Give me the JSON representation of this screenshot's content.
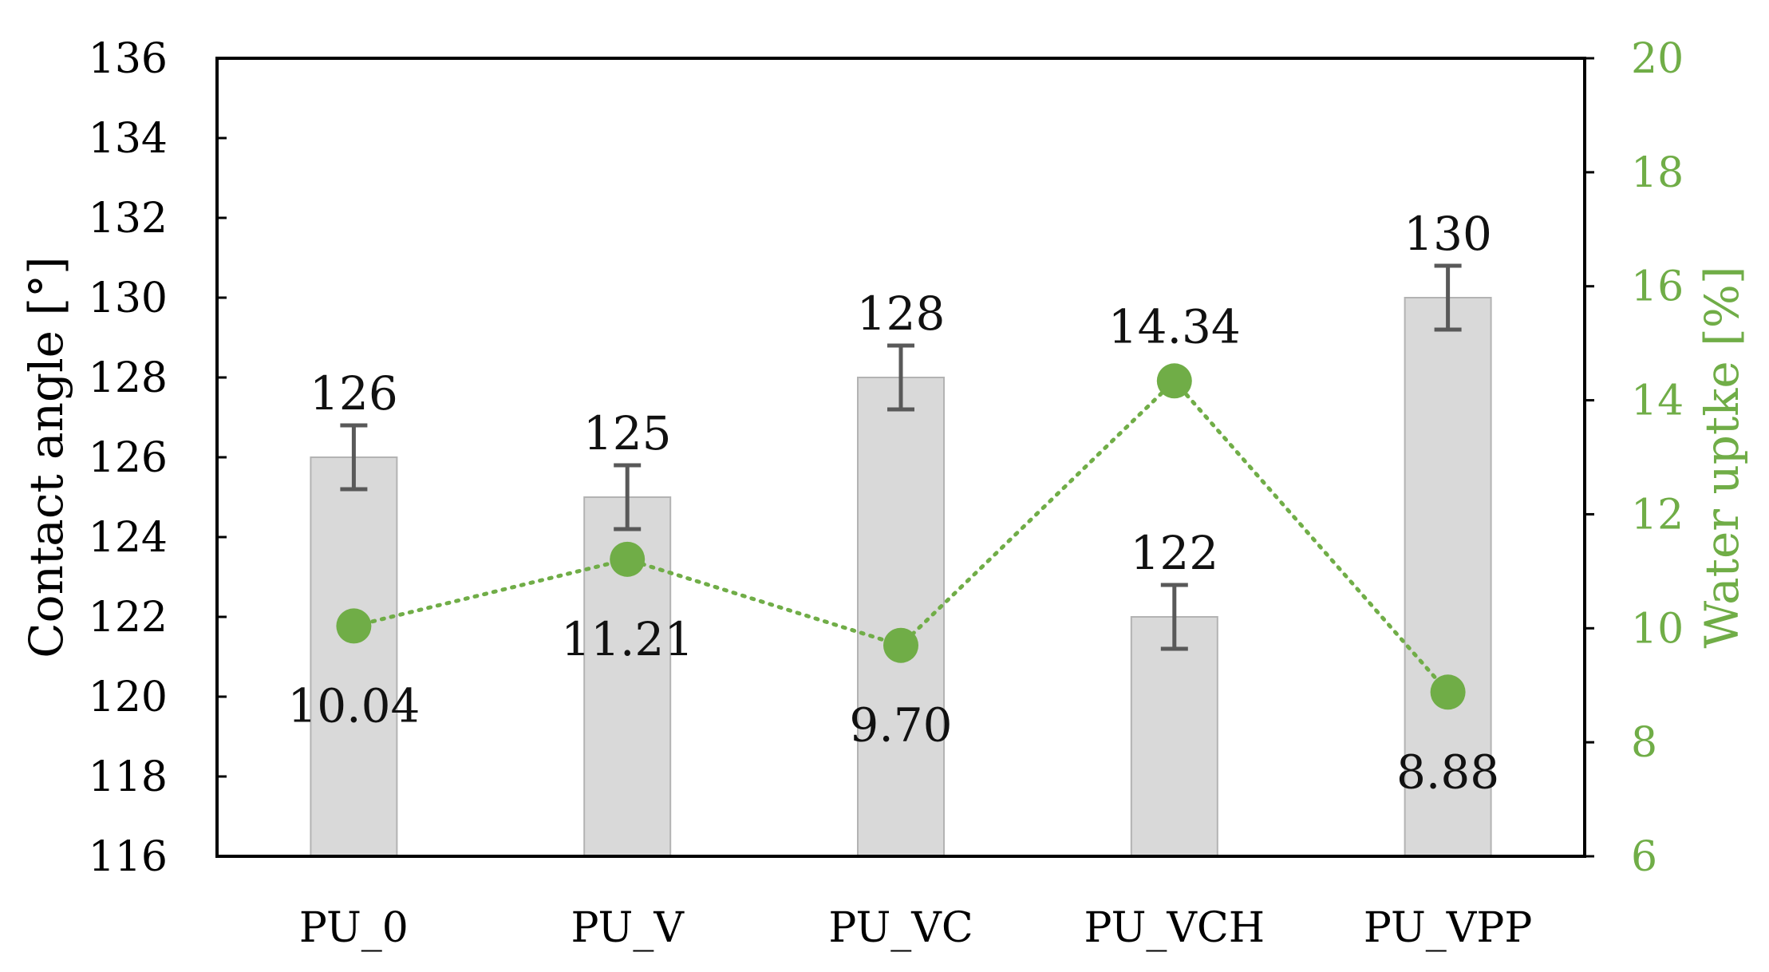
{
  "chart_data": {
    "type": "bar",
    "categories": [
      "PU_0",
      "PU_V",
      "PU_VC",
      "PU_VCH",
      "PU_VPP"
    ],
    "series": [
      {
        "type": "bar",
        "axis": "left",
        "values": [
          126,
          125,
          128,
          122,
          130
        ],
        "error": [
          0.8,
          0.8,
          0.8,
          0.8,
          0.8
        ],
        "labels": [
          "126",
          "125",
          "128",
          "122",
          "130"
        ],
        "color": "#d9d9d9",
        "edge_color": "#b3b3b3",
        "error_color": "#595959"
      },
      {
        "type": "line",
        "axis": "right",
        "values": [
          10.04,
          11.21,
          9.7,
          14.34,
          8.88
        ],
        "labels": [
          "10.04",
          "11.21",
          "9.70",
          "14.34",
          "8.88"
        ],
        "color": "#70ad47",
        "line_style": "dotted"
      }
    ],
    "ylabel": "Contact angle [°]",
    "y2label": "Water uptke [%]",
    "ylim": [
      116,
      136
    ],
    "y2lim": [
      6,
      20
    ],
    "yticks": [
      "116",
      "118",
      "120",
      "122",
      "124",
      "126",
      "128",
      "130",
      "132",
      "134",
      "136"
    ],
    "y2ticks": [
      "6",
      "8",
      "10",
      "12",
      "14",
      "16",
      "18",
      "20"
    ],
    "y2_color": "#70ad47",
    "grid": false,
    "legend": "none"
  }
}
